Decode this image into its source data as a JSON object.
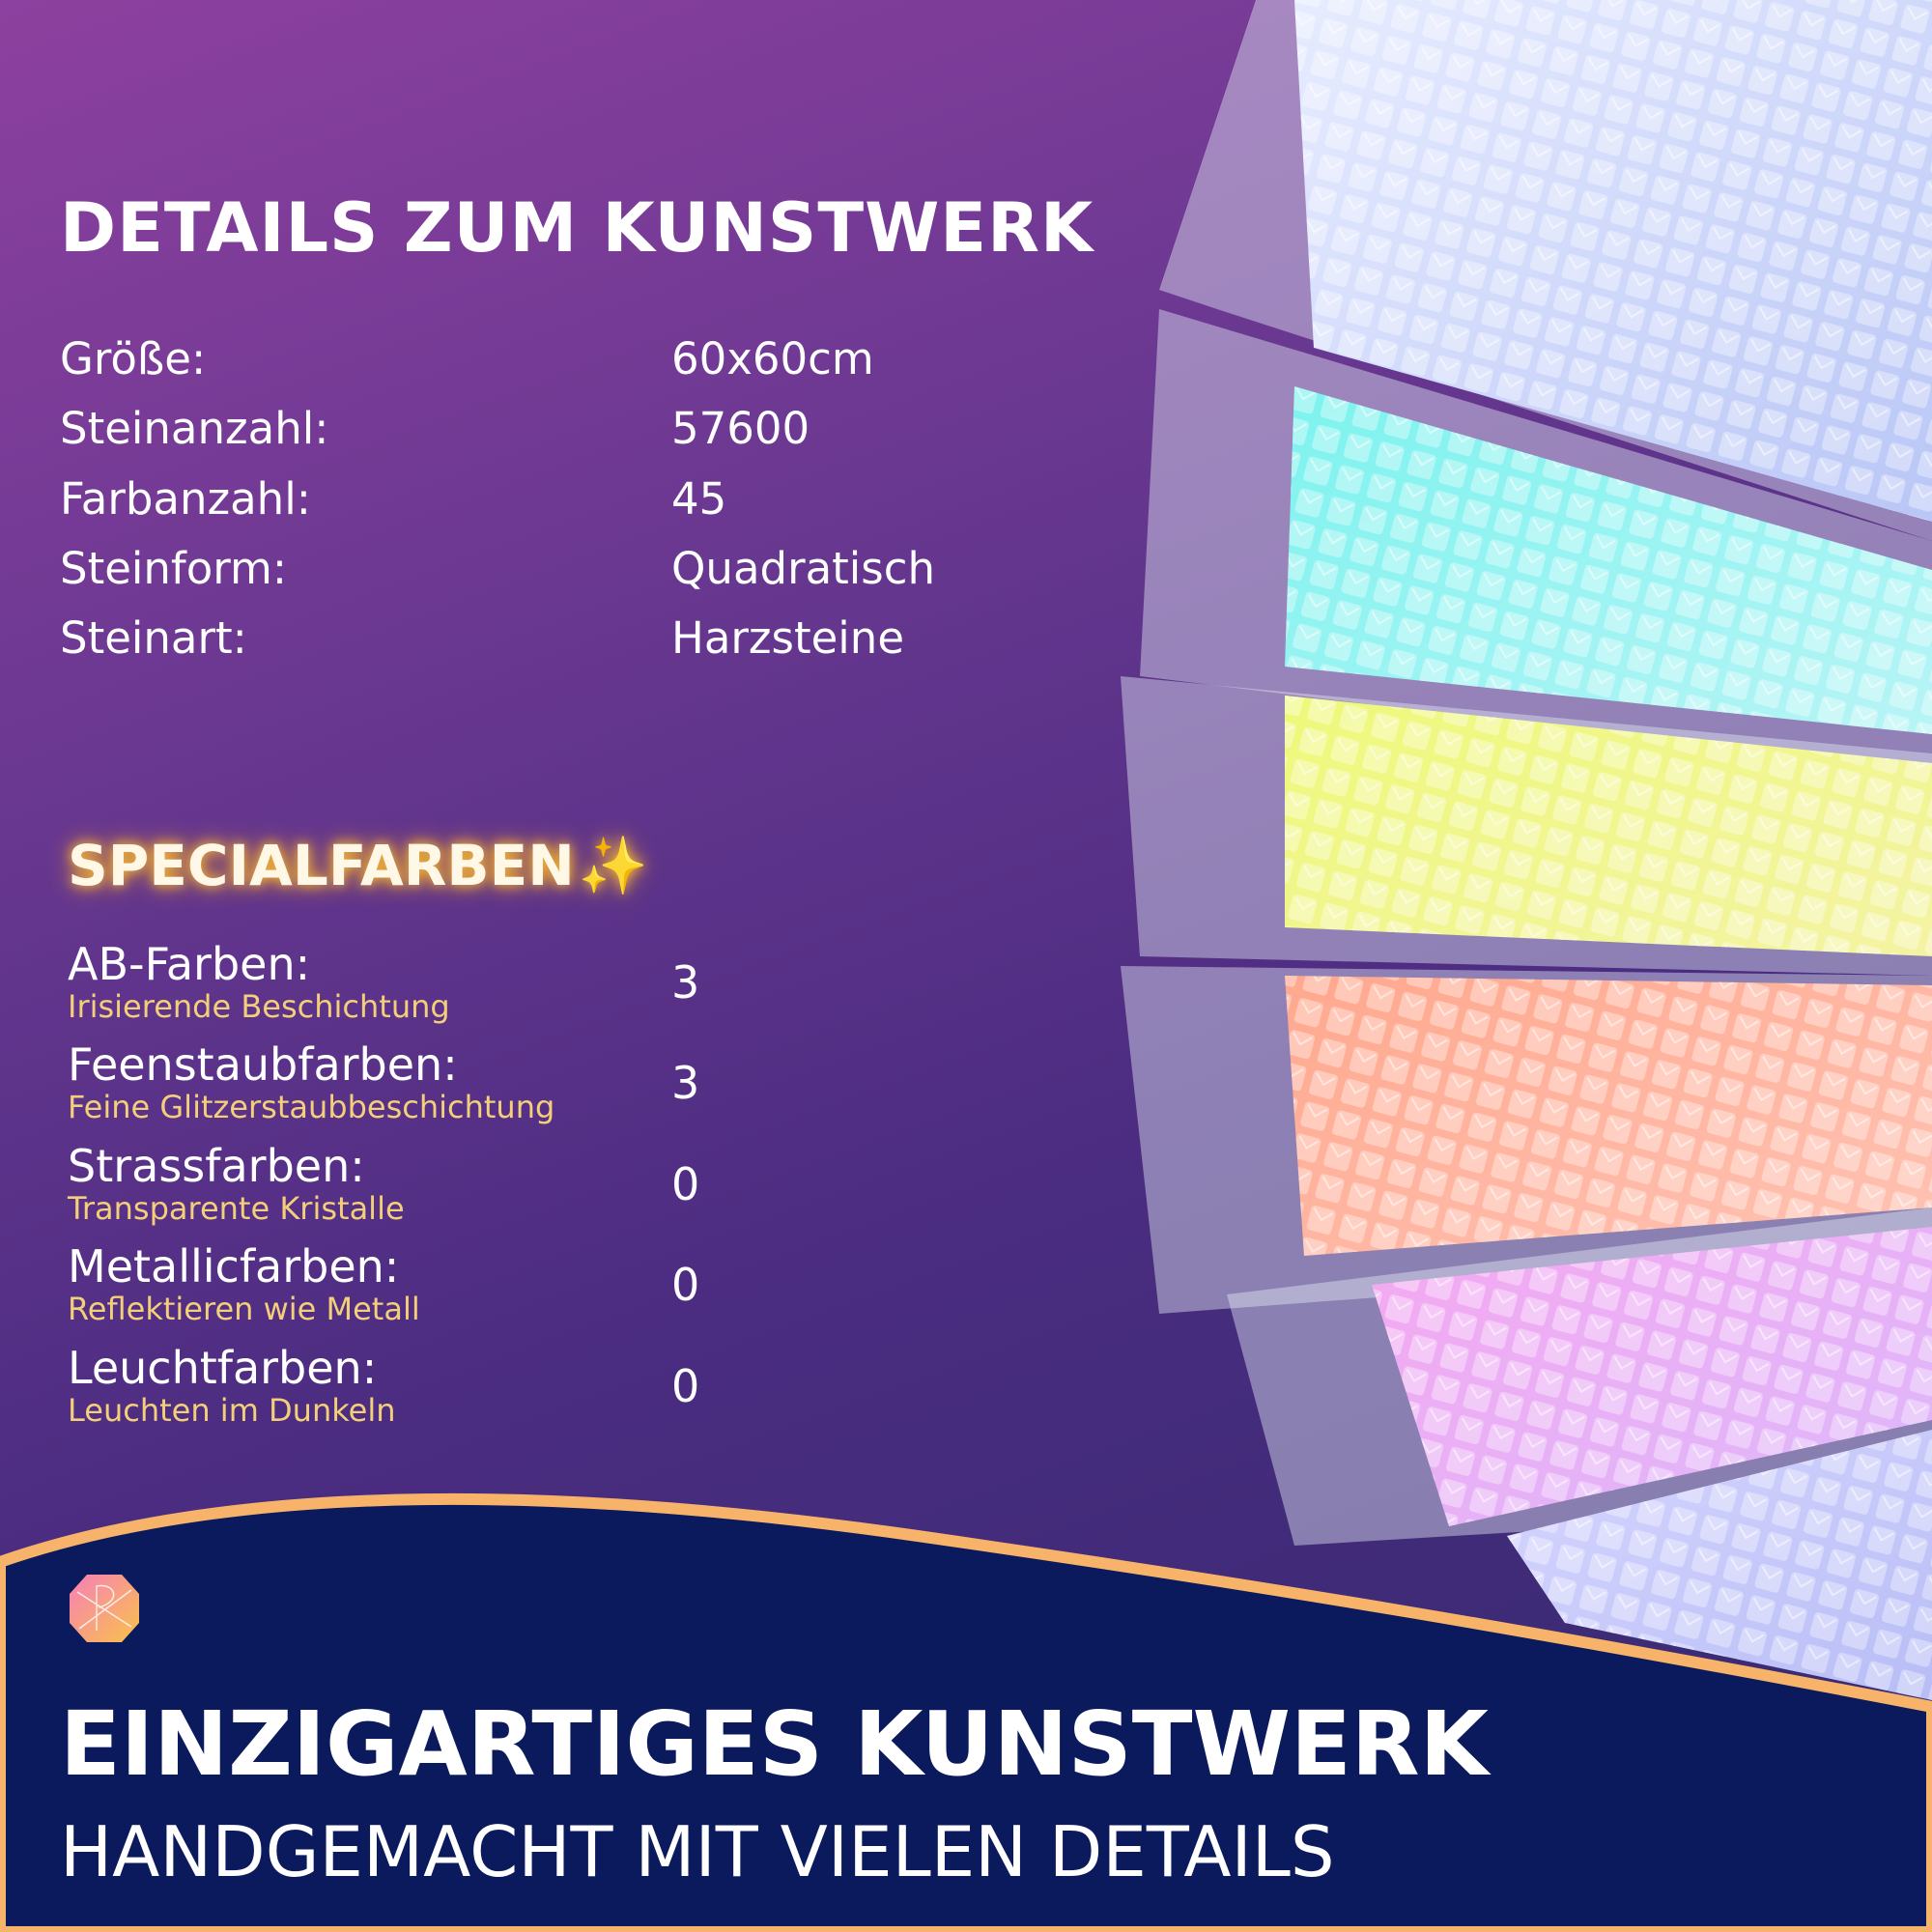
{
  "details": {
    "title": "DETAILS ZUM KUNSTWERK",
    "rows": [
      {
        "label": "Größe:",
        "value": "60x60cm"
      },
      {
        "label": "Steinanzahl:",
        "value": "57600"
      },
      {
        "label": "Farbanzahl:",
        "value": "45"
      },
      {
        "label": "Steinform:",
        "value": "Quadratisch"
      },
      {
        "label": "Steinart:",
        "value": "Harzsteine"
      }
    ]
  },
  "special": {
    "title": "SPECIALFARBEN",
    "icon": "sparkles-icon",
    "sparkle": "✨",
    "rows": [
      {
        "label": "AB-Farben:",
        "sub": "Irisierende Beschichtung",
        "value": "3"
      },
      {
        "label": "Feenstaubfarben:",
        "sub": "Feine Glitzerstaubbeschichtung",
        "value": "3"
      },
      {
        "label": "Strassfarben:",
        "sub": "Transparente Kristalle",
        "value": "0"
      },
      {
        "label": "Metallicfarben:",
        "sub": "Reflektieren wie Metall",
        "value": "0"
      },
      {
        "label": "Leuchtfarben:",
        "sub": "Leuchten im Dunkeln",
        "value": "0"
      }
    ]
  },
  "footer": {
    "headline": "EINZIGARTIGES KUNSTWERK",
    "subline": "HANDGEMACHT MIT VIELEN DETAILS",
    "logo_icon": "gem-logo-icon"
  },
  "colors": {
    "accent_gold": "#f4cf7a",
    "navy": "#0b1a5c",
    "wave_stroke": "#f7b36a"
  }
}
